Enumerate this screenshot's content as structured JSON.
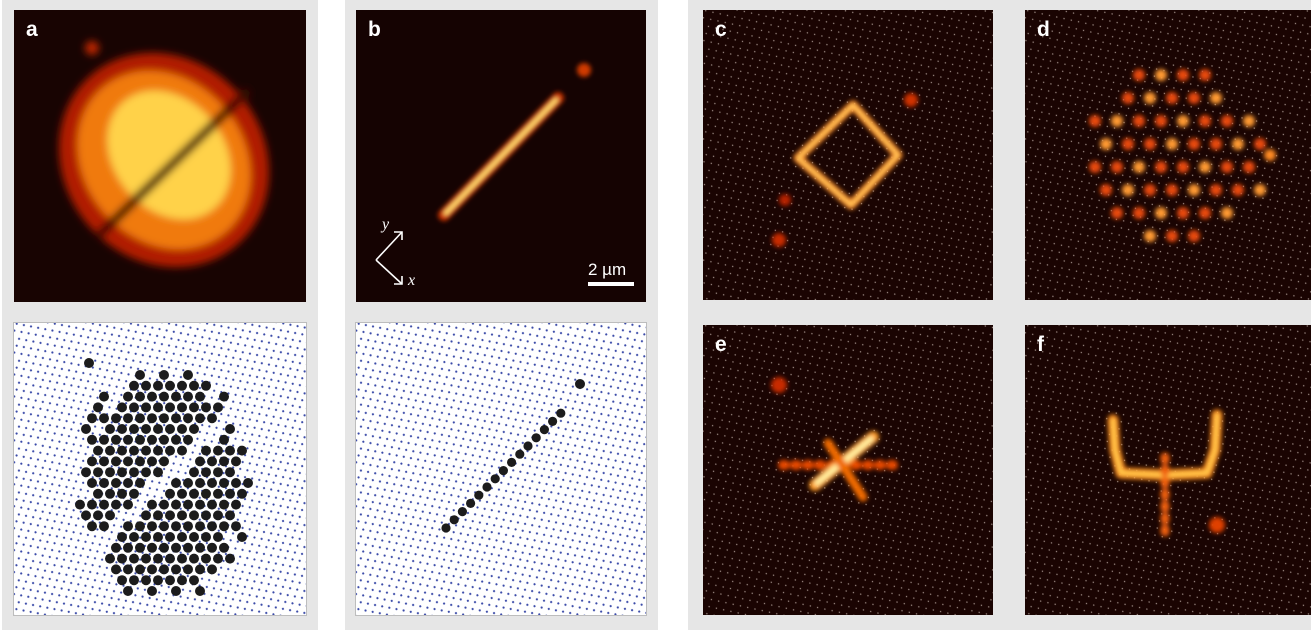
{
  "panels": {
    "a": {
      "label": "a"
    },
    "b": {
      "label": "b",
      "axis_y": "y",
      "axis_x": "x",
      "scale_bar": "2 µm"
    },
    "c": {
      "label": "c"
    },
    "d": {
      "label": "d"
    },
    "e": {
      "label": "e"
    },
    "f": {
      "label": "f"
    }
  },
  "colors": {
    "fluorescence_dark": "#180402",
    "fluorescence_mid": "#c81e00",
    "fluorescence_bright": "#ffe850",
    "lattice_site": "#3a4aa8",
    "occupied_site": "#1c1c1c",
    "panel_background": "#e6e6e6"
  }
}
